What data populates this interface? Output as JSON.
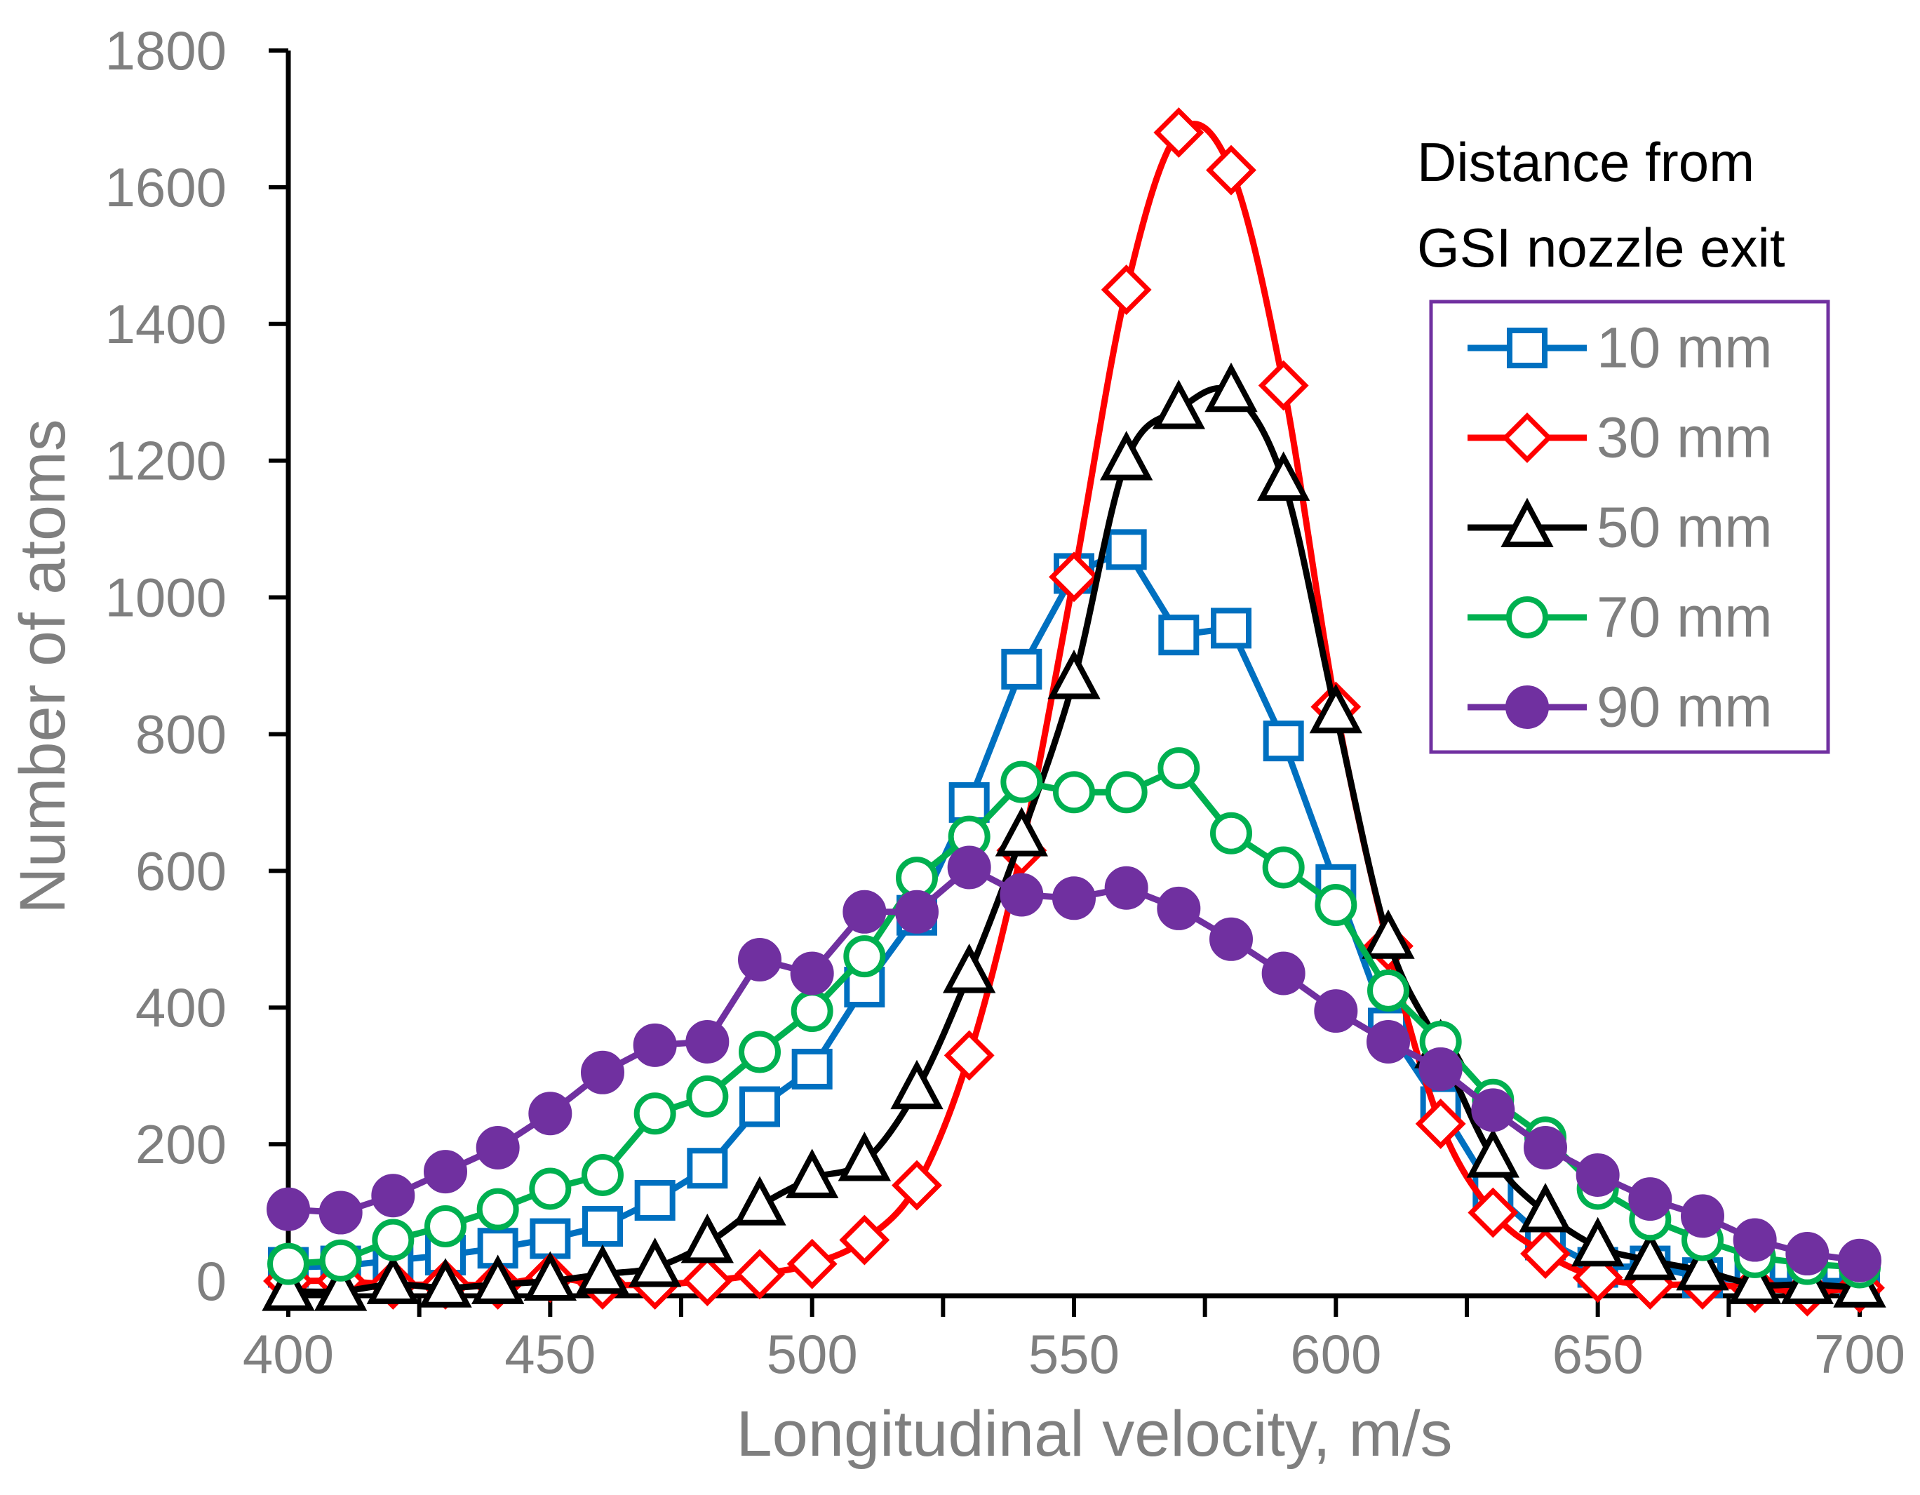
{
  "chart_data": {
    "type": "line",
    "title": "",
    "xlabel": "Longitudinal velocity, m/s",
    "ylabel": "Number of atoms",
    "xlim": [
      400,
      700
    ],
    "ylim": [
      0,
      1800
    ],
    "xticks": [
      "400",
      "450",
      "500",
      "550",
      "600",
      "650",
      "700"
    ],
    "yticks": [
      "0",
      "200",
      "400",
      "600",
      "800",
      "1000",
      "1200",
      "1400",
      "1600",
      "1800"
    ],
    "x": [
      400,
      410,
      420,
      430,
      440,
      450,
      460,
      470,
      480,
      490,
      500,
      510,
      520,
      530,
      540,
      550,
      560,
      570,
      580,
      590,
      600,
      610,
      620,
      630,
      640,
      650,
      660,
      670,
      680,
      690,
      700
    ],
    "legend": {
      "title_line1": "Distance from",
      "title_line2": "GSI nozzle exit",
      "border_color": "#7030A0",
      "position": "top-right"
    },
    "series": [
      {
        "name": "10 mm",
        "color": "#0070C0",
        "marker": "square",
        "smooth": false,
        "values": [
          20,
          22,
          30,
          38,
          48,
          62,
          80,
          118,
          165,
          255,
          310,
          430,
          535,
          700,
          895,
          1035,
          1070,
          945,
          955,
          790,
          580,
          370,
          255,
          130,
          60,
          20,
          22,
          5,
          0,
          0,
          0
        ]
      },
      {
        "name": "30 mm",
        "color": "#FF0000",
        "marker": "diamond",
        "smooth": true,
        "values": [
          0,
          0,
          -5,
          -5,
          -5,
          5,
          -5,
          -5,
          0,
          10,
          25,
          60,
          140,
          330,
          630,
          1030,
          1450,
          1680,
          1625,
          1310,
          840,
          490,
          230,
          100,
          40,
          5,
          -5,
          -5,
          -10,
          -15,
          -10
        ]
      },
      {
        "name": "50 mm",
        "color": "#000000",
        "marker": "triangle",
        "smooth": true,
        "values": [
          -15,
          -15,
          -5,
          -10,
          -5,
          0,
          10,
          20,
          55,
          110,
          150,
          175,
          280,
          450,
          650,
          880,
          1200,
          1275,
          1300,
          1170,
          830,
          500,
          340,
          180,
          100,
          50,
          30,
          15,
          -5,
          -5,
          -10
        ]
      },
      {
        "name": "70 mm",
        "color": "#00B050",
        "marker": "circle-open",
        "smooth": false,
        "values": [
          25,
          30,
          60,
          80,
          105,
          135,
          155,
          245,
          270,
          335,
          395,
          475,
          590,
          650,
          730,
          715,
          715,
          750,
          655,
          605,
          550,
          425,
          350,
          265,
          210,
          135,
          90,
          60,
          35,
          25,
          20
        ]
      },
      {
        "name": "90 mm",
        "color": "#7030A0",
        "marker": "circle-filled",
        "smooth": false,
        "values": [
          105,
          100,
          125,
          160,
          195,
          245,
          305,
          345,
          350,
          470,
          450,
          540,
          540,
          605,
          565,
          560,
          575,
          545,
          500,
          450,
          395,
          350,
          310,
          250,
          195,
          155,
          120,
          95,
          60,
          40,
          30
        ]
      }
    ]
  }
}
